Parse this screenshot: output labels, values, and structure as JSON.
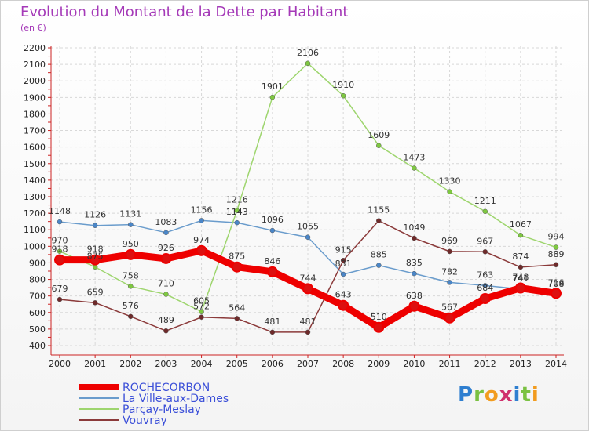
{
  "chart_data": {
    "type": "line",
    "title": "Evolution du Montant de la Dette par Habitant",
    "subtitle": "(en €)",
    "xlabel": "",
    "ylabel": "",
    "ylim": [
      400,
      2200
    ],
    "yticks": [
      400,
      500,
      600,
      700,
      800,
      900,
      1000,
      1100,
      1200,
      1300,
      1400,
      1500,
      1600,
      1700,
      1800,
      1900,
      2000,
      2100,
      2200
    ],
    "categories": [
      "2000",
      "2001",
      "2002",
      "2003",
      "2004",
      "2005",
      "2006",
      "2007",
      "2008",
      "2009",
      "2010",
      "2011",
      "2012",
      "2013",
      "2014"
    ],
    "grid": true,
    "legend_position": "bottom-left",
    "series": [
      {
        "name": "ROCHECORBON",
        "color": "#ee0000",
        "marker": "#dd1010",
        "width": 9,
        "values": [
          918,
          918,
          950,
          926,
          974,
          875,
          846,
          744,
          643,
          510,
          638,
          567,
          684,
          748,
          716
        ],
        "labels": [
          "918",
          "918",
          "950",
          "926",
          "974",
          "875",
          "846",
          "744",
          "643",
          "510",
          "638",
          "567",
          "684",
          "748",
          "716"
        ]
      },
      {
        "name": "La Ville-aux-Dames",
        "color": "#6a9ccc",
        "marker": "#4a86c8",
        "width": 1.5,
        "values": [
          1148,
          1126,
          1131,
          1083,
          1156,
          1143,
          1096,
          1055,
          831,
          885,
          835,
          782,
          763,
          741,
          708
        ],
        "labels": [
          "1148",
          "1126",
          "1131",
          "1083",
          "1156",
          "1143",
          "1096",
          "1055",
          "831",
          "885",
          "835",
          "782",
          "763",
          "741",
          "708"
        ]
      },
      {
        "name": "Parçay-Meslay",
        "color": "#9ed56e",
        "marker": "#7ec840",
        "width": 1.5,
        "values": [
          970,
          875,
          758,
          710,
          605,
          1216,
          1901,
          2106,
          1910,
          1609,
          1473,
          1330,
          1211,
          1067,
          994
        ],
        "labels": [
          "970",
          "875",
          "758",
          "710",
          "605",
          "1216",
          "1901",
          "2106",
          "1910",
          "1609",
          "1473",
          "1330",
          "1211",
          "1067",
          "994"
        ]
      },
      {
        "name": "Vouvray",
        "color": "#8b3a3a",
        "marker": "#6e2a2a",
        "width": 1.5,
        "values": [
          679,
          659,
          576,
          489,
          572,
          564,
          481,
          481,
          915,
          1155,
          1049,
          969,
          967,
          874,
          889
        ],
        "labels": [
          "679",
          "659",
          "576",
          "489",
          "572",
          "564",
          "481",
          "481",
          "915",
          "1155",
          "1049",
          "969",
          "967",
          "874",
          "889"
        ]
      }
    ]
  },
  "logo": {
    "text": "Proxiti",
    "letters": [
      {
        "ch": "P",
        "color": "#2f7fd0"
      },
      {
        "ch": "r",
        "color": "#7ac142"
      },
      {
        "ch": "o",
        "color": "#f29c1f"
      },
      {
        "ch": "x",
        "color": "#d0306d"
      },
      {
        "ch": "i",
        "color": "#2f7fd0"
      },
      {
        "ch": "t",
        "color": "#7ac142"
      },
      {
        "ch": "i",
        "color": "#f29c1f"
      }
    ]
  }
}
